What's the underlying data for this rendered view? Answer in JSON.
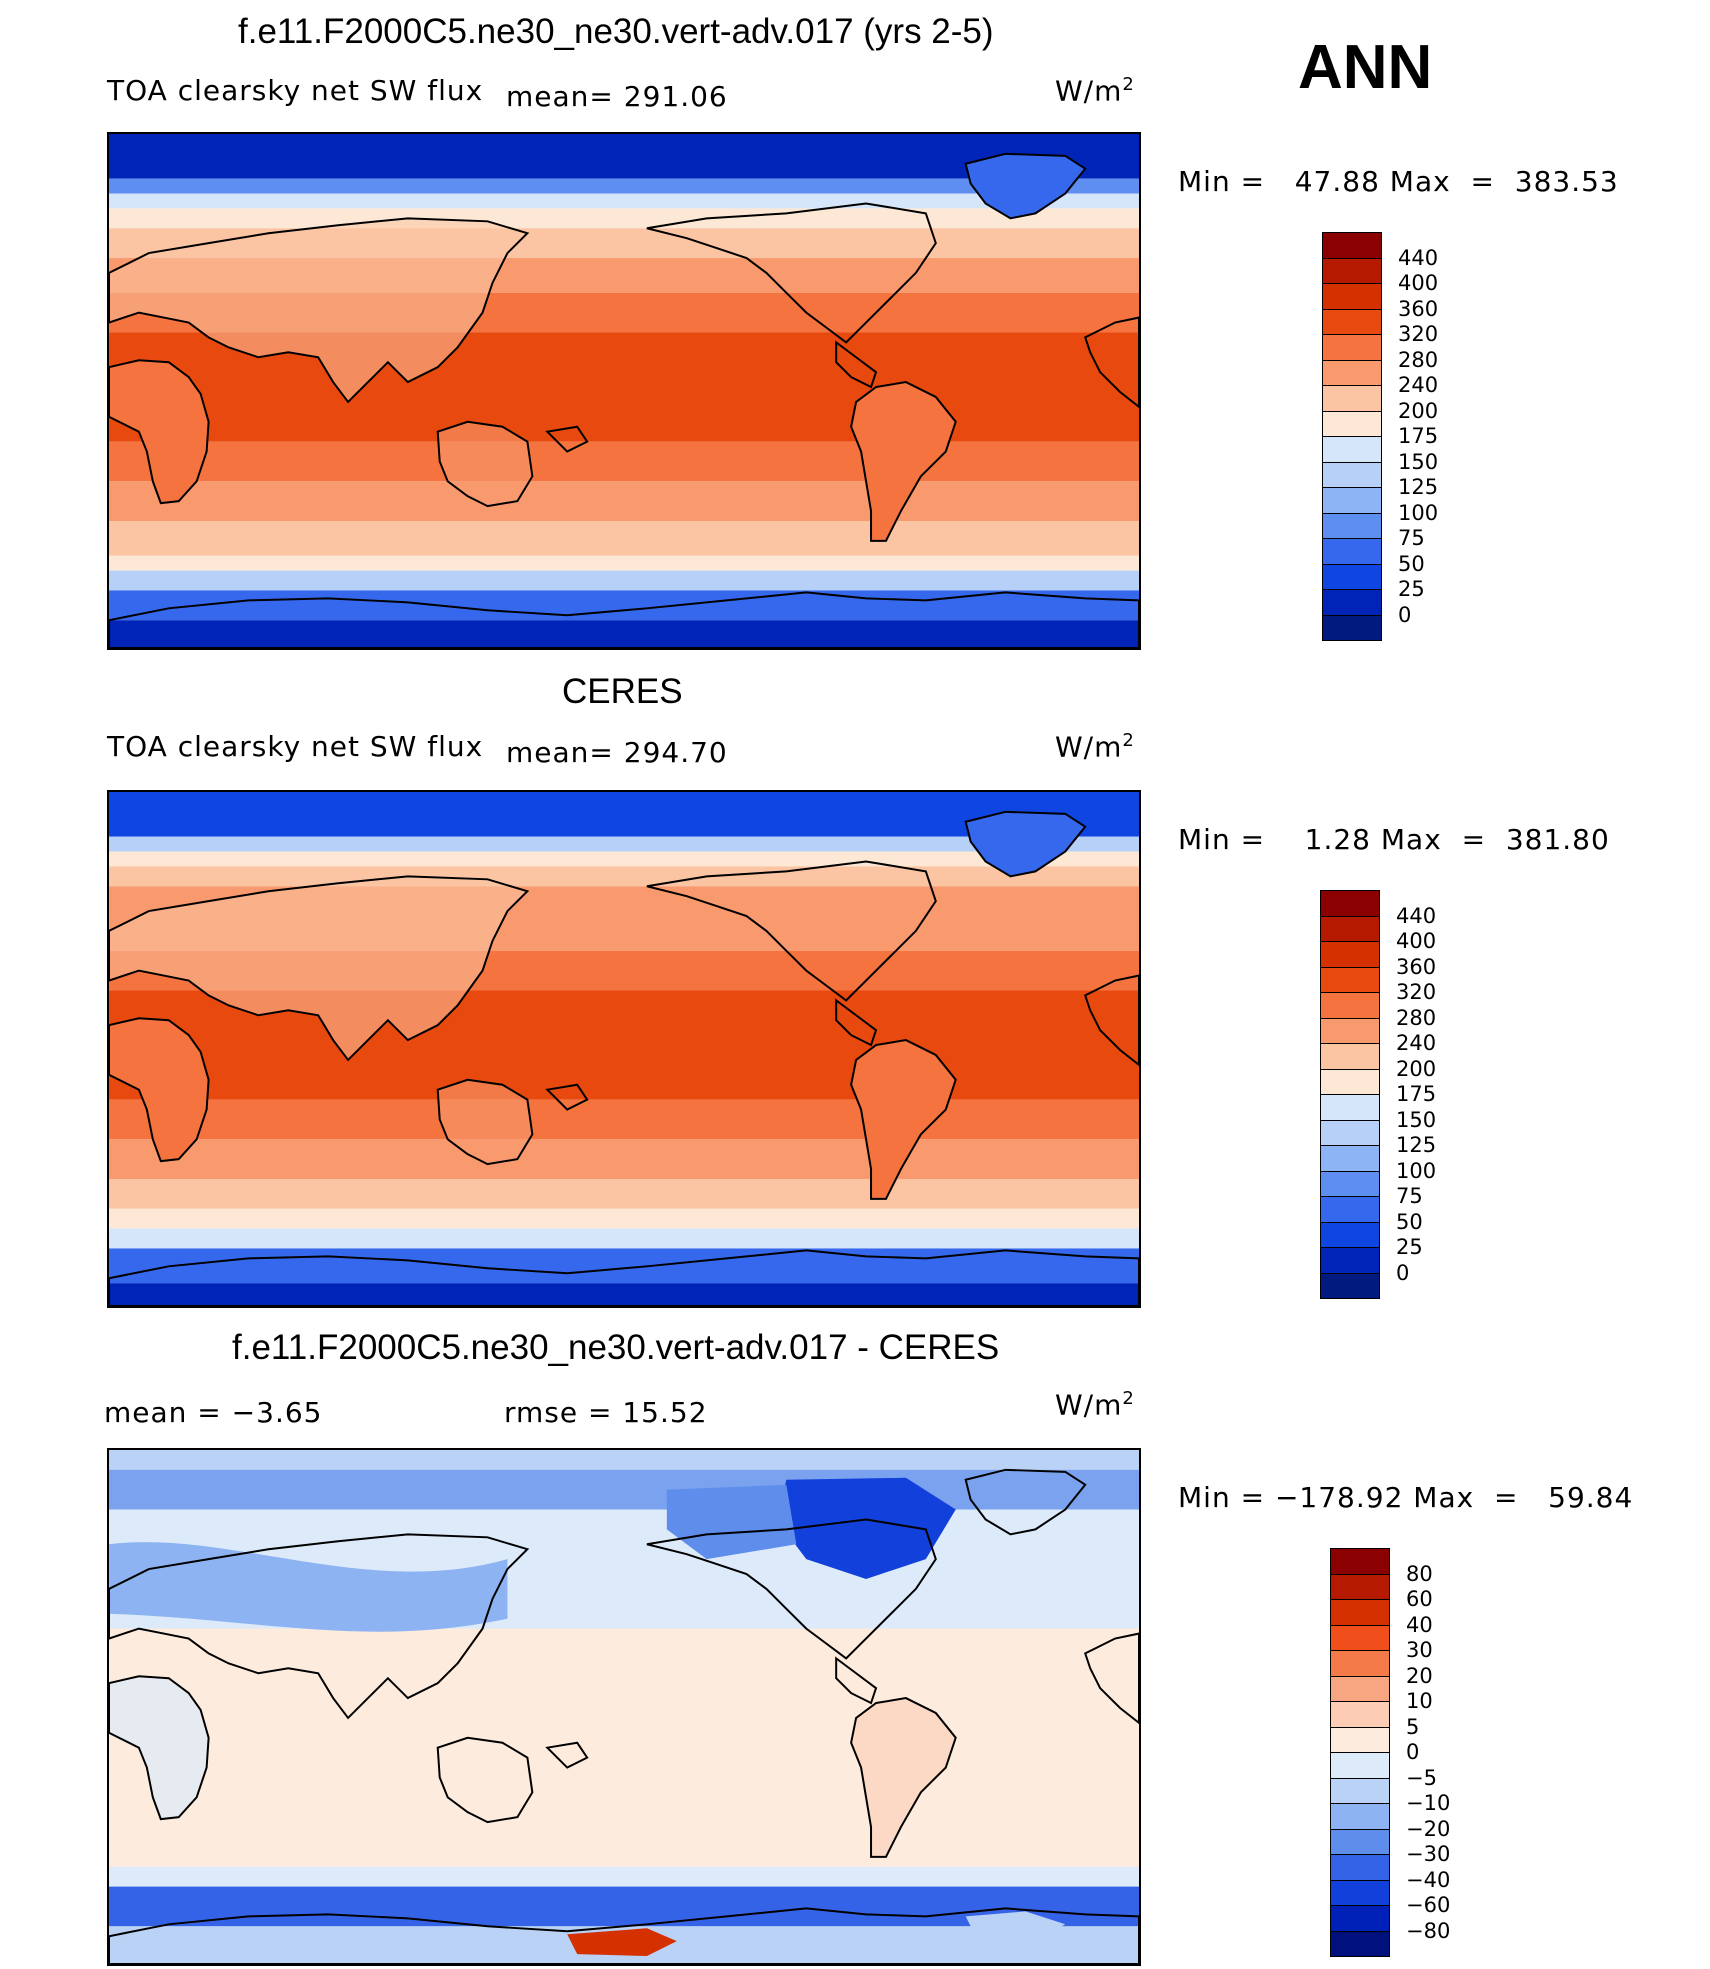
{
  "season": "ANN",
  "units": {
    "base": "W/m",
    "exp": "2"
  },
  "panels": [
    {
      "title": "f.e11.F2000C5.ne30_ne30.vert-adv.017 (yrs 2-5)",
      "left_label": "TOA clearsky net SW flux",
      "center_label": "mean=  291.06",
      "minmax": "Min =   47.88 Max  =  383.53",
      "field": "model",
      "colorbar": {
        "labels": [
          "440",
          "400",
          "360",
          "320",
          "280",
          "240",
          "200",
          "175",
          "150",
          "125",
          "100",
          "75",
          "50",
          "25",
          "0"
        ],
        "colors": [
          "#8B0000",
          "#B51A00",
          "#D43000",
          "#E8490F",
          "#F4733F",
          "#F8996E",
          "#FBC4A3",
          "#FDE8D6",
          "#D6E6FA",
          "#B7D0F8",
          "#8DB4F5",
          "#5E8EF0",
          "#3668EE",
          "#0F45E0",
          "#0024B8",
          "#001A80"
        ]
      }
    },
    {
      "title": "CERES",
      "left_label": "TOA clearsky net SW flux",
      "center_label": "mean=  294.70",
      "minmax": "Min =    1.28 Max  =  381.80",
      "field": "obs",
      "colorbar": {
        "labels": [
          "440",
          "400",
          "360",
          "320",
          "280",
          "240",
          "200",
          "175",
          "150",
          "125",
          "100",
          "75",
          "50",
          "25",
          "0"
        ],
        "colors": [
          "#8B0000",
          "#B51A00",
          "#D43000",
          "#E8490F",
          "#F4733F",
          "#F8996E",
          "#FBC4A3",
          "#FDE8D6",
          "#D6E6FA",
          "#B7D0F8",
          "#8DB4F5",
          "#5E8EF0",
          "#3668EE",
          "#0F45E0",
          "#0024B8",
          "#001A80"
        ]
      }
    },
    {
      "title": "f.e11.F2000C5.ne30_ne30.vert-adv.017 - CERES",
      "left_label": "mean =    −3.65",
      "center_label": "rmse =    15.52",
      "minmax": "Min = −178.92 Max  =   59.84",
      "field": "diff",
      "colorbar": {
        "labels": [
          "80",
          "60",
          "40",
          "30",
          "20",
          "10",
          "5",
          "0",
          "−5",
          "−10",
          "−20",
          "−30",
          "−40",
          "−60",
          "−80"
        ],
        "colors": [
          "#8B0000",
          "#B51A00",
          "#D43000",
          "#F04E1A",
          "#F47A4A",
          "#F8A582",
          "#FCCDB4",
          "#FDEBDD",
          "#DCEAFA",
          "#B9D2F6",
          "#8EB3F2",
          "#5F8DEC",
          "#3563E8",
          "#1140DA",
          "#0021B8",
          "#00117E"
        ]
      }
    }
  ]
}
